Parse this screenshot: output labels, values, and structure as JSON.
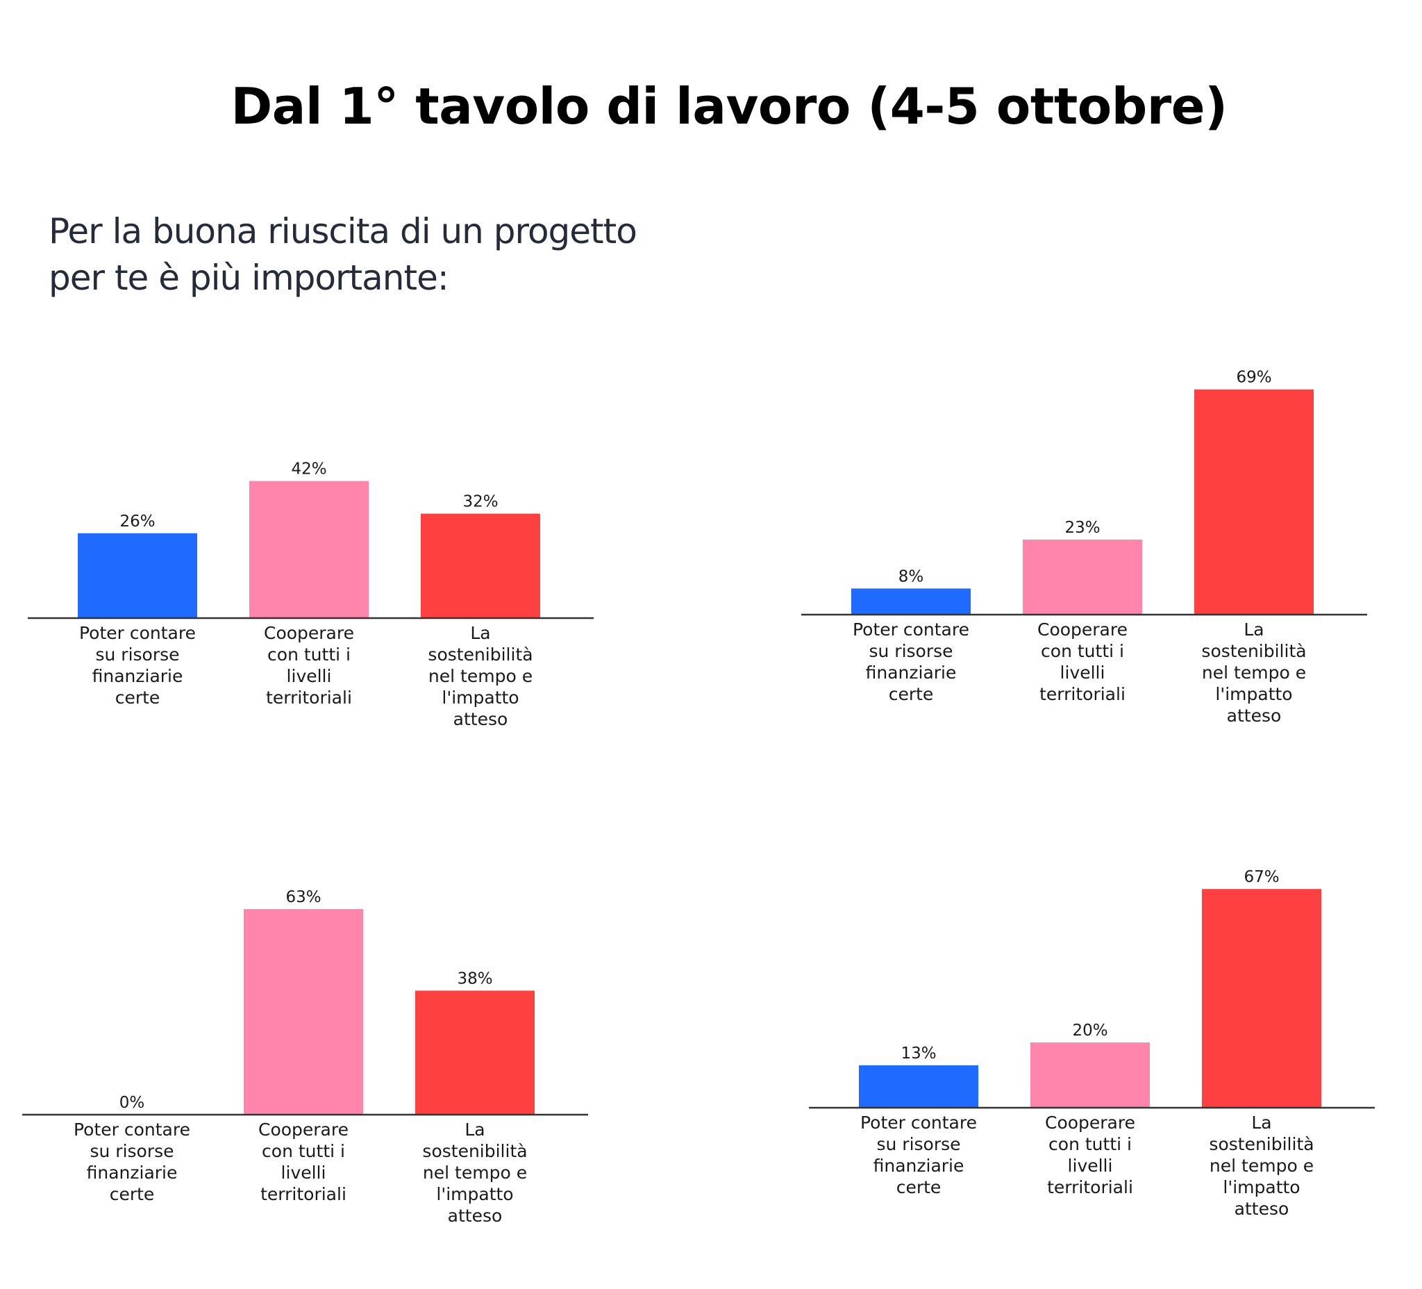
{
  "title": "Dal 1° tavolo di lavoro (4-5 ottobre)",
  "question": {
    "line1": "Per la buona riuscita di un progetto",
    "line2": "per te è più importante:"
  },
  "colors": {
    "blue": "#1f6bff",
    "pink": "#ff85ad",
    "red": "#ff4040",
    "axis": "#333333"
  },
  "chart_data": [
    {
      "type": "bar",
      "categories": [
        "Poter contare su risorse finanziarie certe",
        "Cooperare con tutti i livelli territoriali",
        "La sostenibilità nel tempo e l'impatto atteso"
      ],
      "category_lines": [
        [
          "Poter contare",
          "su risorse",
          "finanziarie",
          "certe"
        ],
        [
          "Cooperare",
          "con tutti i",
          "livelli",
          "territoriali"
        ],
        [
          "La",
          "sostenibilità",
          "nel tempo e",
          "l'impatto",
          "atteso"
        ]
      ],
      "values": [
        26,
        42,
        32
      ],
      "value_labels": [
        "26%",
        "42%",
        "32%"
      ],
      "bar_colors": [
        "#1f6bff",
        "#ff85ad",
        "#ff4040"
      ],
      "ylim": [
        0,
        100
      ]
    },
    {
      "type": "bar",
      "categories": [
        "Poter contare su risorse finanziarie certe",
        "Cooperare con tutti i livelli territoriali",
        "La sostenibilità nel tempo e l'impatto atteso"
      ],
      "category_lines": [
        [
          "Poter contare",
          "su risorse",
          "finanziarie",
          "certe"
        ],
        [
          "Cooperare",
          "con tutti i",
          "livelli",
          "territoriali"
        ],
        [
          "La",
          "sostenibilità",
          "nel tempo e",
          "l'impatto",
          "atteso"
        ]
      ],
      "values": [
        8,
        23,
        69
      ],
      "value_labels": [
        "8%",
        "23%",
        "69%"
      ],
      "bar_colors": [
        "#1f6bff",
        "#ff85ad",
        "#ff4040"
      ],
      "ylim": [
        0,
        100
      ]
    },
    {
      "type": "bar",
      "categories": [
        "Poter contare su risorse finanziarie certe",
        "Cooperare con tutti i livelli territoriali",
        "La sostenibilità nel tempo e l'impatto atteso"
      ],
      "category_lines": [
        [
          "Poter contare",
          "su risorse",
          "finanziarie",
          "certe"
        ],
        [
          "Cooperare",
          "con tutti i",
          "livelli",
          "territoriali"
        ],
        [
          "La",
          "sostenibilità",
          "nel tempo e",
          "l'impatto",
          "atteso"
        ]
      ],
      "values": [
        0,
        63,
        38
      ],
      "value_labels": [
        "0%",
        "63%",
        "38%"
      ],
      "bar_colors": [
        "#1f6bff",
        "#ff85ad",
        "#ff4040"
      ],
      "ylim": [
        0,
        100
      ]
    },
    {
      "type": "bar",
      "categories": [
        "Poter contare su risorse finanziarie certe",
        "Cooperare con tutti i livelli territoriali",
        "La sostenibilità nel tempo e l'impatto atteso"
      ],
      "category_lines": [
        [
          "Poter contare",
          "su risorse",
          "finanziarie",
          "certe"
        ],
        [
          "Cooperare",
          "con tutti i",
          "livelli",
          "territoriali"
        ],
        [
          "La",
          "sostenibilità",
          "nel tempo e",
          "l'impatto",
          "atteso"
        ]
      ],
      "values": [
        13,
        20,
        67
      ],
      "value_labels": [
        "13%",
        "20%",
        "67%"
      ],
      "bar_colors": [
        "#1f6bff",
        "#ff85ad",
        "#ff4040"
      ],
      "ylim": [
        0,
        100
      ]
    }
  ]
}
